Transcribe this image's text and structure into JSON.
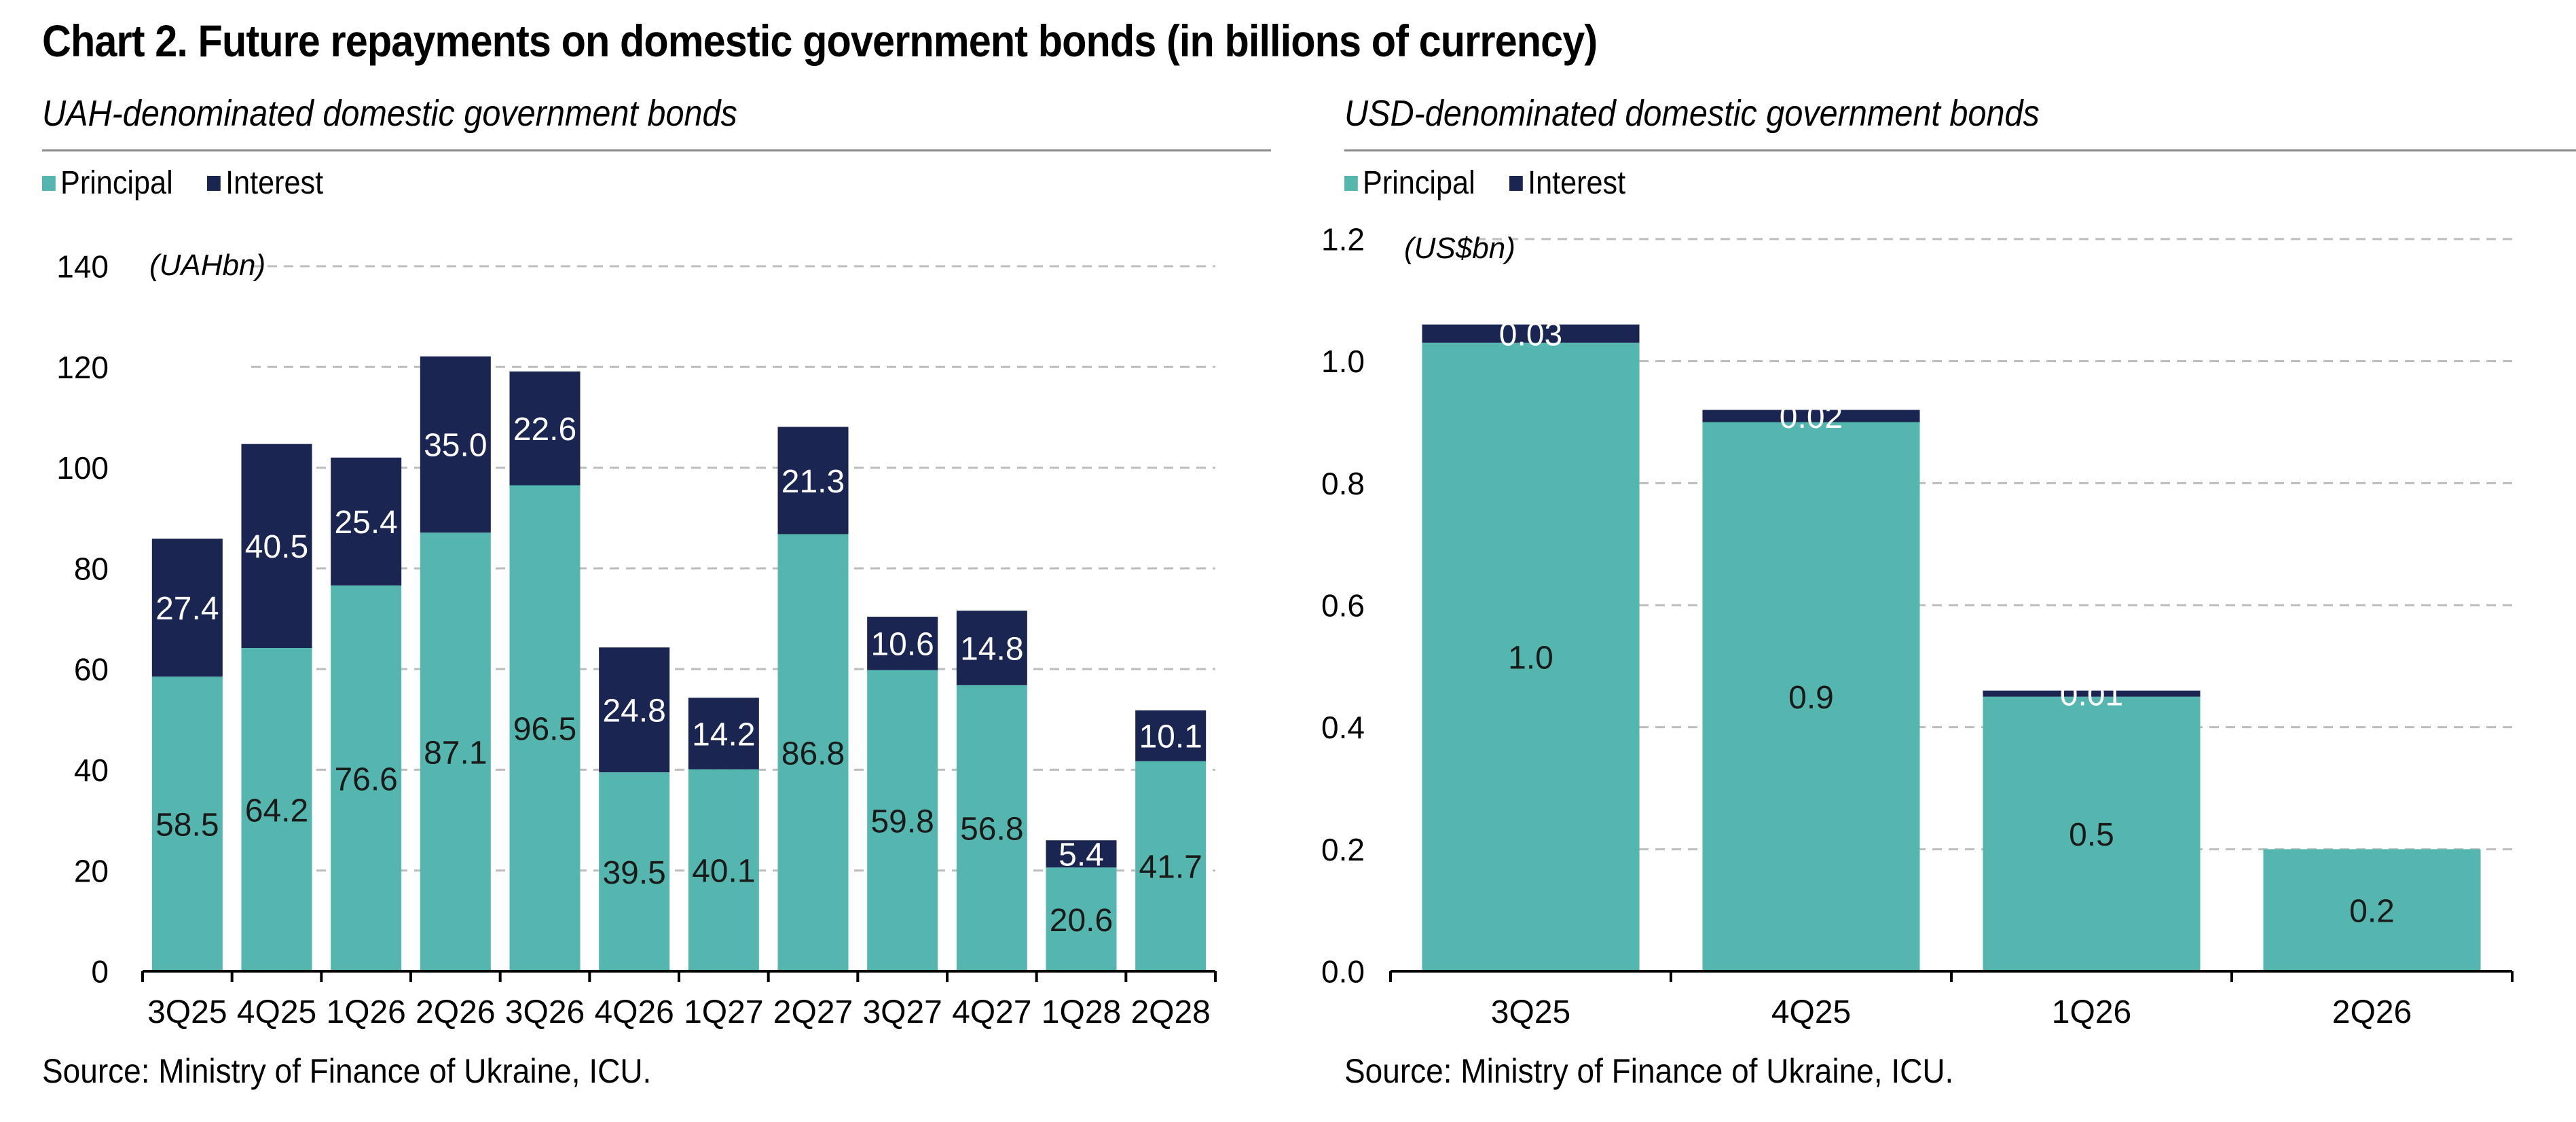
{
  "title": "Chart 2. Future repayments on domestic government bonds (in billions of currency)",
  "source_left": "Source: Ministry of Finance of Ukraine, ICU.",
  "source_right": "Source: Ministry of Finance of Ukraine, ICU.",
  "colors": {
    "principal": "#55b6b0",
    "interest": "#1a2651",
    "grid": "#bdbdbd",
    "axis": "#000000"
  },
  "chart_data": [
    {
      "type": "bar",
      "stacked": true,
      "title": "UAH-denominated domestic government bonds",
      "unit_label": "(UAHbn)",
      "categories": [
        "3Q25",
        "4Q25",
        "1Q26",
        "2Q26",
        "3Q26",
        "4Q26",
        "1Q27",
        "2Q27",
        "3Q27",
        "4Q27",
        "1Q28",
        "2Q28"
      ],
      "series": [
        {
          "name": "Principal",
          "values": [
            58.5,
            64.2,
            76.6,
            87.1,
            96.5,
            39.5,
            40.1,
            86.8,
            59.8,
            56.8,
            20.6,
            41.7
          ],
          "labels": [
            "58.5",
            "64.2",
            "76.6",
            "87.1",
            "96.5",
            "39.5",
            "40.1",
            "86.8",
            "59.8",
            "56.8",
            "20.6",
            "41.7"
          ]
        },
        {
          "name": "Interest",
          "values": [
            27.4,
            40.5,
            25.4,
            35.0,
            22.6,
            24.8,
            14.2,
            21.3,
            10.6,
            14.8,
            5.4,
            10.1
          ],
          "labels": [
            "27.4",
            "40.5",
            "25.4",
            "35.0",
            "22.6",
            "24.8",
            "14.2",
            "21.3",
            "10.6",
            "14.8",
            "5.4",
            "10.1"
          ]
        }
      ],
      "ylim": [
        0,
        140
      ],
      "yticks": [
        "0",
        "20",
        "40",
        "60",
        "80",
        "100",
        "120",
        "140"
      ],
      "grid": true,
      "legend_position": "top-left"
    },
    {
      "type": "bar",
      "stacked": true,
      "title": "USD-denominated domestic government bonds",
      "unit_label": "(US$bn)",
      "categories": [
        "3Q25",
        "4Q25",
        "1Q26",
        "2Q26"
      ],
      "series": [
        {
          "name": "Principal",
          "values": [
            1.03,
            0.9,
            0.45,
            0.2
          ],
          "labels": [
            "1.0",
            "0.9",
            "0.5",
            "0.2"
          ]
        },
        {
          "name": "Interest",
          "values": [
            0.03,
            0.02,
            0.01,
            0.0
          ],
          "labels": [
            "0.03",
            "0.02",
            "0.01",
            ""
          ]
        }
      ],
      "ylim": [
        0,
        1.2
      ],
      "yticks": [
        "0.0",
        "0.2",
        "0.4",
        "0.6",
        "0.8",
        "1.0",
        "1.2"
      ],
      "grid": true,
      "legend_position": "top-left"
    }
  ]
}
